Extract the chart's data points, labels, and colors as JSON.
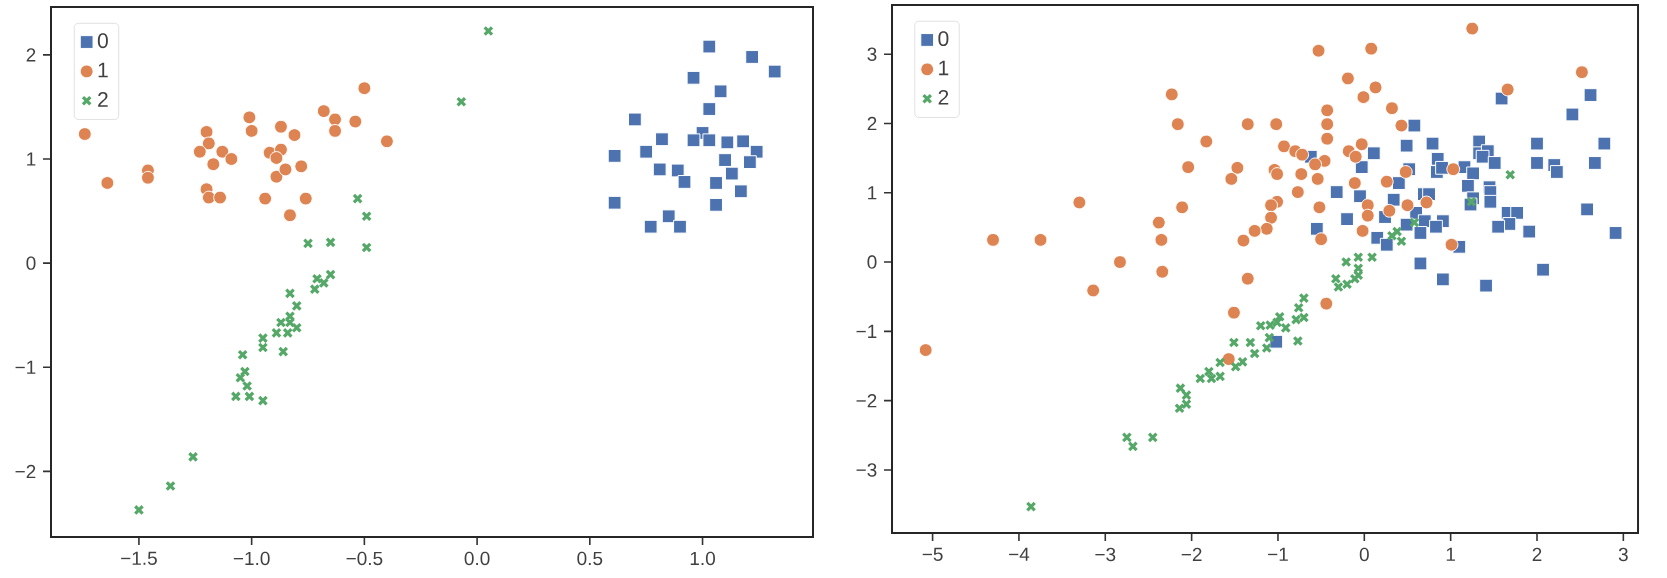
{
  "chart_data": [
    {
      "type": "scatter",
      "legend": "top left",
      "grid": false,
      "xlim": [
        -1.89,
        1.49
      ],
      "ylim": [
        -2.63,
        2.46
      ],
      "xticks": [
        {
          "value": -1.5,
          "label": "−1.5"
        },
        {
          "value": -1.0,
          "label": "−1.0"
        },
        {
          "value": -0.5,
          "label": "−0.5"
        },
        {
          "value": 0.0,
          "label": "0.0"
        },
        {
          "value": 0.5,
          "label": "0.5"
        },
        {
          "value": 1.0,
          "label": "1.0"
        }
      ],
      "yticks": [
        {
          "value": -2,
          "label": "−2"
        },
        {
          "value": -1,
          "label": "−1"
        },
        0,
        1,
        2
      ],
      "series": [
        {
          "name": "0",
          "color": "#4c72b0",
          "marker": "square",
          "x": [
            1.03,
            1.22,
            1.32,
            0.96,
            1.08,
            1.03,
            0.7,
            1.0,
            0.96,
            1.03,
            1.11,
            1.18,
            0.82,
            0.75,
            1.24,
            0.61,
            1.1,
            1.21,
            0.81,
            0.89,
            1.13,
            0.92,
            1.06,
            1.17,
            0.61,
            1.06,
            0.85,
            0.77,
            0.9
          ],
          "values": [
            2.08,
            1.98,
            1.84,
            1.78,
            1.65,
            1.48,
            1.38,
            1.25,
            1.18,
            1.18,
            1.16,
            1.17,
            1.19,
            1.07,
            1.07,
            1.03,
            0.99,
            0.97,
            0.9,
            0.89,
            0.86,
            0.78,
            0.77,
            0.69,
            0.58,
            0.56,
            0.45,
            0.35,
            0.35
          ]
        },
        {
          "name": "1",
          "color": "#dd8452",
          "marker": "circle",
          "x": [
            -1.74,
            -1.64,
            -1.46,
            -1.46,
            -1.2,
            -1.19,
            -1.23,
            -1.13,
            -1.09,
            -1.17,
            -1.2,
            -1.19,
            -1.14,
            -1.01,
            -1.0,
            -0.94,
            -0.87,
            -0.92,
            -0.87,
            -0.89,
            -0.89,
            -0.85,
            -0.81,
            -0.78,
            -0.76,
            -0.83,
            -0.68,
            -0.63,
            -0.63,
            -0.54,
            -0.5,
            -0.4
          ],
          "values": [
            1.24,
            0.77,
            0.89,
            0.82,
            1.26,
            1.15,
            1.07,
            1.07,
            1.0,
            0.95,
            0.71,
            0.63,
            0.63,
            1.4,
            1.27,
            0.62,
            1.31,
            1.06,
            1.09,
            1.01,
            0.83,
            0.9,
            1.23,
            0.93,
            0.62,
            0.46,
            1.46,
            1.38,
            1.27,
            1.36,
            1.68,
            1.17
          ]
        },
        {
          "name": "2",
          "color": "#55a868",
          "marker": "cross",
          "x": [
            0.05,
            -0.07,
            -0.53,
            -0.49,
            -0.49,
            -0.75,
            -0.65,
            -0.65,
            -0.71,
            -0.68,
            -0.72,
            -0.83,
            -0.8,
            -0.83,
            -0.87,
            -0.83,
            -0.8,
            -0.89,
            -0.84,
            -0.86,
            -0.95,
            -0.95,
            -1.04,
            -1.03,
            -1.05,
            -1.02,
            -1.07,
            -1.01,
            -0.95,
            -1.26,
            -1.36,
            -1.5
          ],
          "values": [
            2.23,
            1.55,
            0.62,
            0.45,
            0.15,
            0.19,
            0.2,
            -0.11,
            -0.15,
            -0.19,
            -0.25,
            -0.29,
            -0.41,
            -0.51,
            -0.57,
            -0.57,
            -0.62,
            -0.67,
            -0.67,
            -0.85,
            -0.72,
            -0.81,
            -0.88,
            -1.04,
            -1.1,
            -1.18,
            -1.28,
            -1.28,
            -1.32,
            -1.86,
            -2.14,
            -2.37
          ]
        }
      ]
    },
    {
      "type": "scatter",
      "legend": "top left",
      "grid": false,
      "xlim": [
        -5.47,
        3.17
      ],
      "ylim": [
        -3.91,
        3.71
      ],
      "xticks": [
        {
          "value": -5,
          "label": "−5"
        },
        {
          "value": -4,
          "label": "−4"
        },
        {
          "value": -3,
          "label": "−3"
        },
        {
          "value": -2,
          "label": "−2"
        },
        {
          "value": -1,
          "label": "−1"
        },
        0,
        1,
        2,
        3
      ],
      "yticks": [
        {
          "value": -3,
          "label": "−3"
        },
        {
          "value": -2,
          "label": "−2"
        },
        {
          "value": -1,
          "label": "−1"
        },
        0,
        1,
        2,
        3
      ],
      "series": [
        {
          "name": "0",
          "color": "#4c72b0",
          "marker": "square",
          "x": [
            2.62,
            1.59,
            2.41,
            0.58,
            2.78,
            2.0,
            0.79,
            0.49,
            1.33,
            0.11,
            -0.62,
            0.85,
            1.33,
            1.43,
            1.37,
            1.51,
            2.0,
            2.67,
            2.2,
            2.23,
            -0.03,
            0.52,
            0.84,
            0.9,
            1.16,
            1.26,
            0.4,
            1.2,
            1.45,
            1.46,
            -0.32,
            0.69,
            0.75,
            -0.05,
            0.34,
            1.26,
            1.46,
            1.23,
            2.58,
            1.66,
            1.77,
            0.6,
            -0.2,
            0.24,
            0.7,
            0.91,
            1.68,
            1.55,
            0.83,
            0.49,
            -0.55,
            1.91,
            2.91,
            0.65,
            0.15,
            0.26,
            1.1,
            0.65,
            2.07,
            0.91,
            1.41,
            -1.02
          ],
          "values": [
            2.41,
            2.36,
            2.13,
            1.97,
            1.71,
            1.71,
            1.71,
            1.68,
            1.74,
            1.57,
            1.52,
            1.49,
            1.57,
            1.6,
            1.52,
            1.43,
            1.43,
            1.43,
            1.4,
            1.3,
            1.37,
            1.34,
            1.3,
            1.36,
            1.37,
            1.28,
            1.14,
            1.1,
            1.08,
            1.01,
            1.01,
            0.98,
            0.98,
            0.95,
            0.9,
            0.92,
            0.87,
            0.83,
            0.76,
            0.71,
            0.71,
            0.71,
            0.62,
            0.65,
            0.59,
            0.59,
            0.55,
            0.51,
            0.51,
            0.54,
            0.48,
            0.44,
            0.42,
            0.42,
            0.35,
            0.25,
            0.22,
            -0.02,
            -0.11,
            -0.25,
            -0.34,
            -1.15
          ]
        },
        {
          "name": "1",
          "color": "#dd8452",
          "marker": "circle",
          "x": [
            1.25,
            -0.53,
            0.08,
            2.52,
            -0.19,
            0.13,
            1.66,
            -2.23,
            -0.01,
            0.32,
            -0.43,
            -2.16,
            -1.35,
            -1.02,
            -0.43,
            0.43,
            -0.43,
            -1.83,
            -0.03,
            -0.93,
            -0.8,
            -0.72,
            -0.18,
            -0.1,
            -0.46,
            -0.57,
            -2.04,
            -1.47,
            -1.04,
            -1.01,
            -0.73,
            0.48,
            1.03,
            -1.54,
            -0.54,
            -0.11,
            0.26,
            -0.77,
            -3.3,
            -1.01,
            -1.08,
            -2.11,
            0.04,
            0.5,
            0.72,
            -0.52,
            0.29,
            -1.08,
            0.04,
            -2.38,
            -1.13,
            -1.27,
            -0.02,
            -4.3,
            -3.75,
            -2.35,
            -1.4,
            -0.5,
            1.01,
            -2.83,
            -2.34,
            -3.14,
            -1.35,
            -0.44,
            -1.51,
            -1.57,
            -5.08
          ],
          "values": [
            3.37,
            3.05,
            3.08,
            2.74,
            2.65,
            2.52,
            2.49,
            2.42,
            2.38,
            2.22,
            2.19,
            1.99,
            1.99,
            1.99,
            1.99,
            1.97,
            1.78,
            1.74,
            1.7,
            1.67,
            1.6,
            1.55,
            1.6,
            1.52,
            1.46,
            1.41,
            1.37,
            1.36,
            1.33,
            1.27,
            1.27,
            1.3,
            1.34,
            1.2,
            1.2,
            1.14,
            1.16,
            1.01,
            0.86,
            0.87,
            0.82,
            0.79,
            0.82,
            0.82,
            0.86,
            0.79,
            0.74,
            0.64,
            0.67,
            0.57,
            0.48,
            0.45,
            0.45,
            0.32,
            0.32,
            0.32,
            0.31,
            0.33,
            0.25,
            0.0,
            -0.14,
            -0.41,
            -0.24,
            -0.6,
            -0.73,
            -1.4,
            -1.27
          ]
        },
        {
          "name": "2",
          "color": "#55a868",
          "marker": "cross",
          "x": [
            1.69,
            1.24,
            0.58,
            0.38,
            0.32,
            0.43,
            0.09,
            -0.07,
            -0.21,
            -0.07,
            -0.07,
            -0.11,
            -0.33,
            -0.2,
            -0.3,
            -0.7,
            -0.76,
            -0.7,
            -0.98,
            -0.79,
            -1.01,
            -1.2,
            -1.09,
            -0.91,
            -0.77,
            -1.1,
            -1.13,
            -1.32,
            -1.51,
            -1.27,
            -1.41,
            -1.49,
            -1.67,
            -1.8,
            -1.67,
            -1.77,
            -1.9,
            -2.13,
            -2.06,
            -2.06,
            -2.14,
            -2.75,
            -2.45,
            -2.68,
            -3.86
          ],
          "values": [
            1.26,
            0.87,
            0.57,
            0.44,
            0.38,
            0.3,
            0.07,
            0.07,
            0.0,
            -0.09,
            -0.19,
            -0.24,
            -0.24,
            -0.32,
            -0.36,
            -0.52,
            -0.66,
            -0.8,
            -0.79,
            -0.83,
            -0.87,
            -0.92,
            -0.91,
            -0.95,
            -1.14,
            -1.09,
            -1.24,
            -1.16,
            -1.16,
            -1.32,
            -1.44,
            -1.51,
            -1.45,
            -1.58,
            -1.65,
            -1.68,
            -1.68,
            -1.82,
            -1.92,
            -2.05,
            -2.11,
            -2.53,
            -2.53,
            -2.66,
            -3.53
          ]
        }
      ]
    }
  ]
}
